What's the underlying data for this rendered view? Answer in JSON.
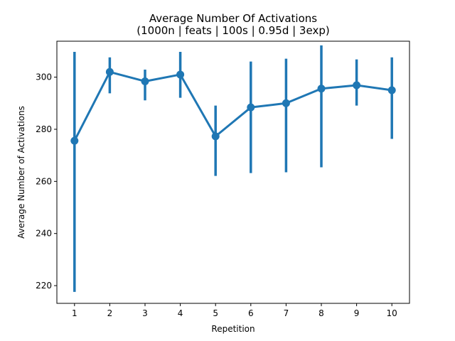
{
  "chart_data": {
    "type": "line",
    "title": "Average Number Of Activations",
    "subtitle": "(1000n | feats | 100s | 0.95d | 3exp)",
    "xlabel": "Repetition",
    "ylabel": "Average Number of Activations",
    "categories": [
      "1",
      "2",
      "3",
      "4",
      "5",
      "6",
      "7",
      "8",
      "9",
      "10"
    ],
    "series": [
      {
        "values": [
          275.6,
          302.0,
          298.4,
          301.0,
          277.3,
          288.4,
          290.0,
          295.6,
          296.9,
          295.0
        ],
        "ci_low": [
          217.6,
          293.8,
          291.1,
          292.1,
          262.1,
          263.2,
          263.5,
          265.4,
          289.1,
          276.3
        ],
        "ci_high": [
          309.7,
          307.6,
          302.9,
          309.7,
          289.1,
          306.0,
          307.1,
          312.2,
          306.8,
          307.6
        ]
      }
    ],
    "yticks": [
      220,
      240,
      260,
      280,
      300
    ],
    "ylim": [
      213.2,
      313.8
    ],
    "grid": false,
    "colors": {
      "series": "#1f77b4"
    }
  }
}
